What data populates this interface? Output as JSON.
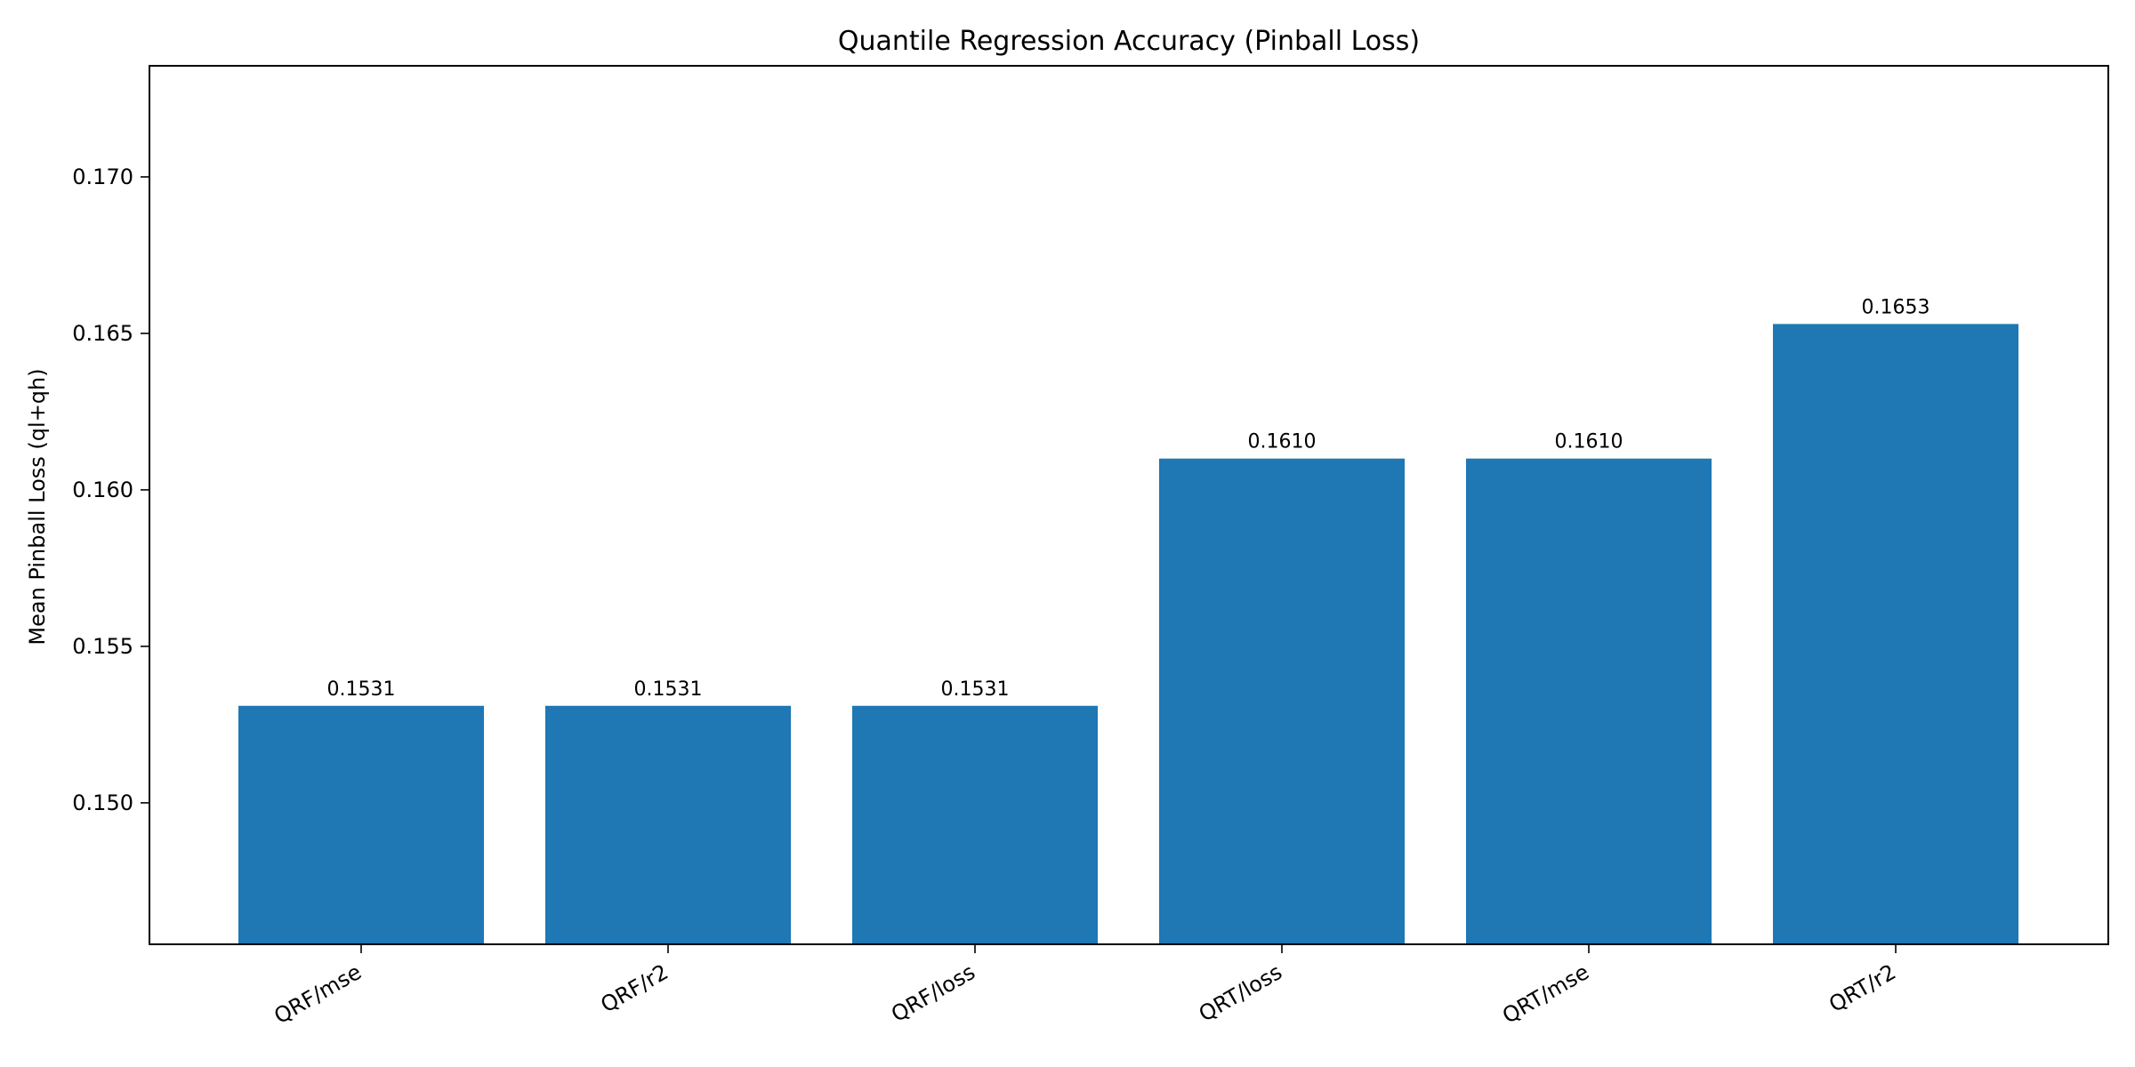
{
  "chart_data": {
    "type": "bar",
    "title": "Quantile Regression Accuracy (Pinball Loss)",
    "xlabel": "",
    "ylabel": "Mean Pinball Loss (ql+qh)",
    "categories": [
      "QRF/mse",
      "QRF/r2",
      "QRF/loss",
      "QRT/loss",
      "QRT/mse",
      "QRT/r2"
    ],
    "values": [
      0.1531,
      0.1531,
      0.1531,
      0.161,
      0.161,
      0.1653
    ],
    "data_labels": [
      "0.1531",
      "0.1531",
      "0.1531",
      "0.1610",
      "0.1610",
      "0.1653"
    ],
    "ylim": [
      0.14548,
      0.17355
    ],
    "yticks": [
      0.15,
      0.155,
      0.16,
      0.165,
      0.17
    ],
    "ytick_labels": [
      "0.150",
      "0.155",
      "0.160",
      "0.165",
      "0.170"
    ],
    "bar_color": "#1f77b4",
    "grid": false,
    "legend": "none"
  }
}
